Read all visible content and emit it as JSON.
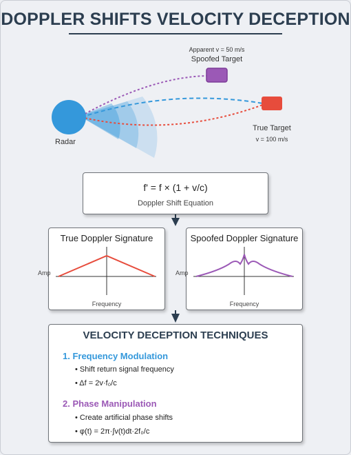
{
  "title": "DOPPLER SHIFTS VELOCITY DECEPTION",
  "scene": {
    "radar_label": "Radar",
    "spoofed_apparent": "Apparent v = 50 m/s",
    "spoofed_label": "Spoofed Target",
    "true_label": "True Target",
    "true_velocity": "v = 100 m/s"
  },
  "equation": {
    "formula": "f' = f × (1 + v/c)",
    "caption": "Doppler Shift Equation"
  },
  "panels": [
    {
      "title": "True Doppler Signature",
      "y_label": "Amp",
      "x_label": "Frequency"
    },
    {
      "title": "Spoofed Doppler Signature",
      "y_label": "Amp",
      "x_label": "Frequency"
    }
  ],
  "techniques": {
    "heading": "VELOCITY DECEPTION TECHNIQUES",
    "items": [
      {
        "title": "1. Frequency Modulation",
        "bullets": [
          "• Shift return signal frequency",
          "• Δf = 2v·f₀/c"
        ]
      },
      {
        "title": "2. Phase Manipulation",
        "bullets": [
          "• Create artificial phase shifts",
          "• φ(t) = 2π·∫v(t)dt·2f₀/c"
        ]
      }
    ]
  },
  "colors": {
    "radar": "#3498db",
    "true_target": "#e74c3c",
    "spoofed_target": "#9b59b6",
    "title": "#2c3e50"
  }
}
